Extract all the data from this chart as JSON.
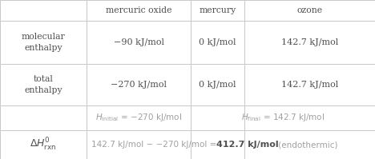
{
  "bg_color": "#f2f2f2",
  "cell_bg": "#ffffff",
  "border_color": "#c8c8c8",
  "text_color": "#505050",
  "light_text": "#a0a0a0",
  "col_headers": [
    "mercuric oxide",
    "mercury",
    "ozone"
  ],
  "mol_enthalpy_vals": [
    "−90 kJ/mol",
    "0 kJ/mol",
    "142.7 kJ/mol"
  ],
  "total_enthalpy_vals": [
    "−270 kJ/mol",
    "0 kJ/mol",
    "142.7 kJ/mol"
  ],
  "cols": [
    0,
    108,
    238,
    305,
    468
  ],
  "rows": [
    0,
    26,
    80,
    132,
    163,
    199
  ],
  "font_size_header": 7.8,
  "font_size_body": 8.0,
  "font_size_label": 7.5
}
